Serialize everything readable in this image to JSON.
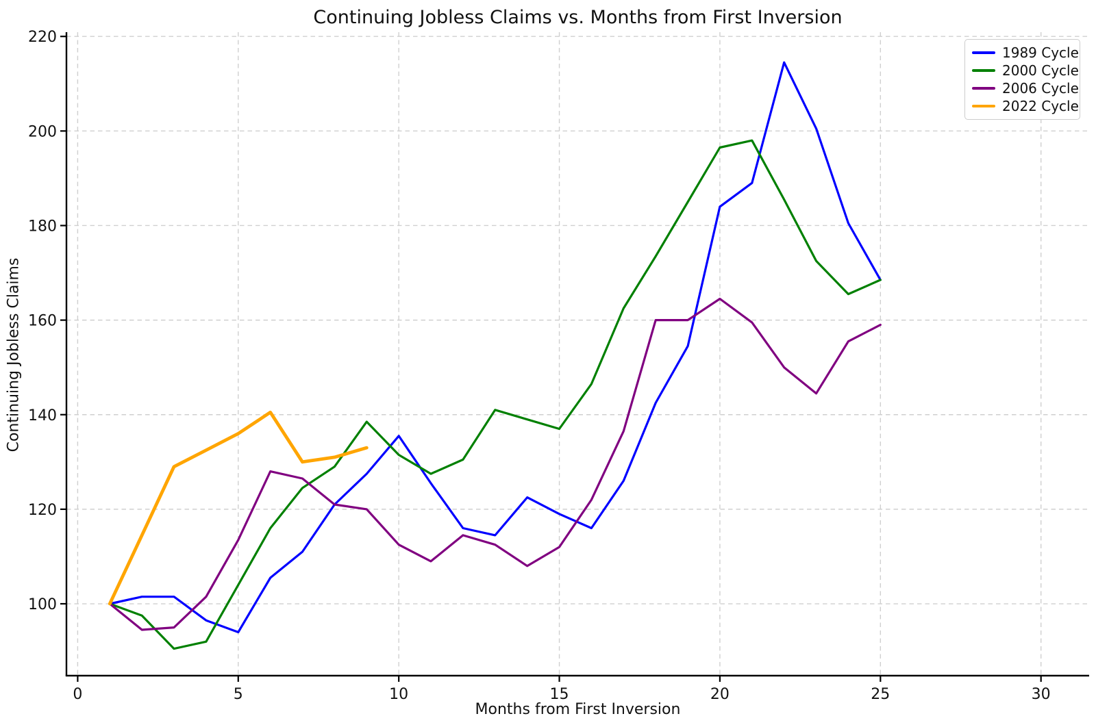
{
  "title": "Continuing Jobless Claims vs. Months from First Inversion",
  "chart_data": {
    "type": "line",
    "title": "Continuing Jobless Claims vs. Months from First Inversion",
    "xlabel": "Months from First Inversion",
    "ylabel": "Continuing Jobless Claims",
    "xlim": [
      -0.35,
      31.5
    ],
    "ylim": [
      84.8,
      220.9
    ],
    "x_ticks": [
      0,
      5,
      10,
      15,
      20,
      25,
      30
    ],
    "y_ticks": [
      100,
      120,
      140,
      160,
      180,
      200,
      220
    ],
    "grid": true,
    "grid_style": "dashed",
    "legend_position": "upper right",
    "colors": {
      "grid": "#cfcfcf",
      "spine": "#000000",
      "text": "#111111"
    },
    "series": [
      {
        "name": "1989 Cycle",
        "color": "#0000ff",
        "line_width": 3.2,
        "x": [
          1,
          2,
          3,
          4,
          5,
          6,
          7,
          8,
          9,
          10,
          11,
          12,
          13,
          14,
          15,
          16,
          17,
          18,
          19,
          20,
          21,
          22,
          23,
          24,
          25
        ],
        "y": [
          100,
          101.5,
          101.5,
          96.5,
          94,
          105.5,
          111,
          121,
          127.5,
          135.5,
          125.5,
          116,
          114.5,
          122.5,
          119,
          116,
          126,
          142.5,
          154.5,
          184,
          189,
          214.5,
          200.5,
          180.5,
          168.5
        ]
      },
      {
        "name": "2000 Cycle",
        "color": "#008000",
        "line_width": 3.2,
        "x": [
          1,
          2,
          3,
          4,
          5,
          6,
          7,
          8,
          9,
          10,
          11,
          12,
          13,
          14,
          15,
          16,
          17,
          18,
          19,
          20,
          21,
          22,
          23,
          24,
          25
        ],
        "y": [
          100,
          97.5,
          90.5,
          92,
          104,
          116,
          124.5,
          129,
          138.5,
          131.5,
          127.5,
          130.5,
          141,
          139,
          137,
          146.5,
          162.5,
          173.5,
          185,
          196.5,
          198,
          185.5,
          172.5,
          165.5,
          168.5
        ]
      },
      {
        "name": "2006 Cycle",
        "color": "#800080",
        "line_width": 3.2,
        "x": [
          1,
          2,
          3,
          4,
          5,
          6,
          7,
          8,
          9,
          10,
          11,
          12,
          13,
          14,
          15,
          16,
          17,
          18,
          19,
          20,
          21,
          22,
          23,
          24,
          25
        ],
        "y": [
          100,
          94.5,
          95,
          101.5,
          113.5,
          128,
          126.5,
          121,
          120,
          112.5,
          109,
          114.5,
          112.5,
          108,
          112,
          122,
          136.5,
          160,
          160,
          164.5,
          159.5,
          150,
          144.5,
          155.5,
          159
        ]
      },
      {
        "name": "2022 Cycle",
        "color": "#ffa500",
        "line_width": 4.8,
        "x": [
          1,
          2,
          3,
          4,
          5,
          6,
          7,
          8,
          9
        ],
        "y": [
          100,
          114.5,
          129,
          132.5,
          136,
          140.5,
          130,
          131,
          133
        ]
      }
    ]
  }
}
